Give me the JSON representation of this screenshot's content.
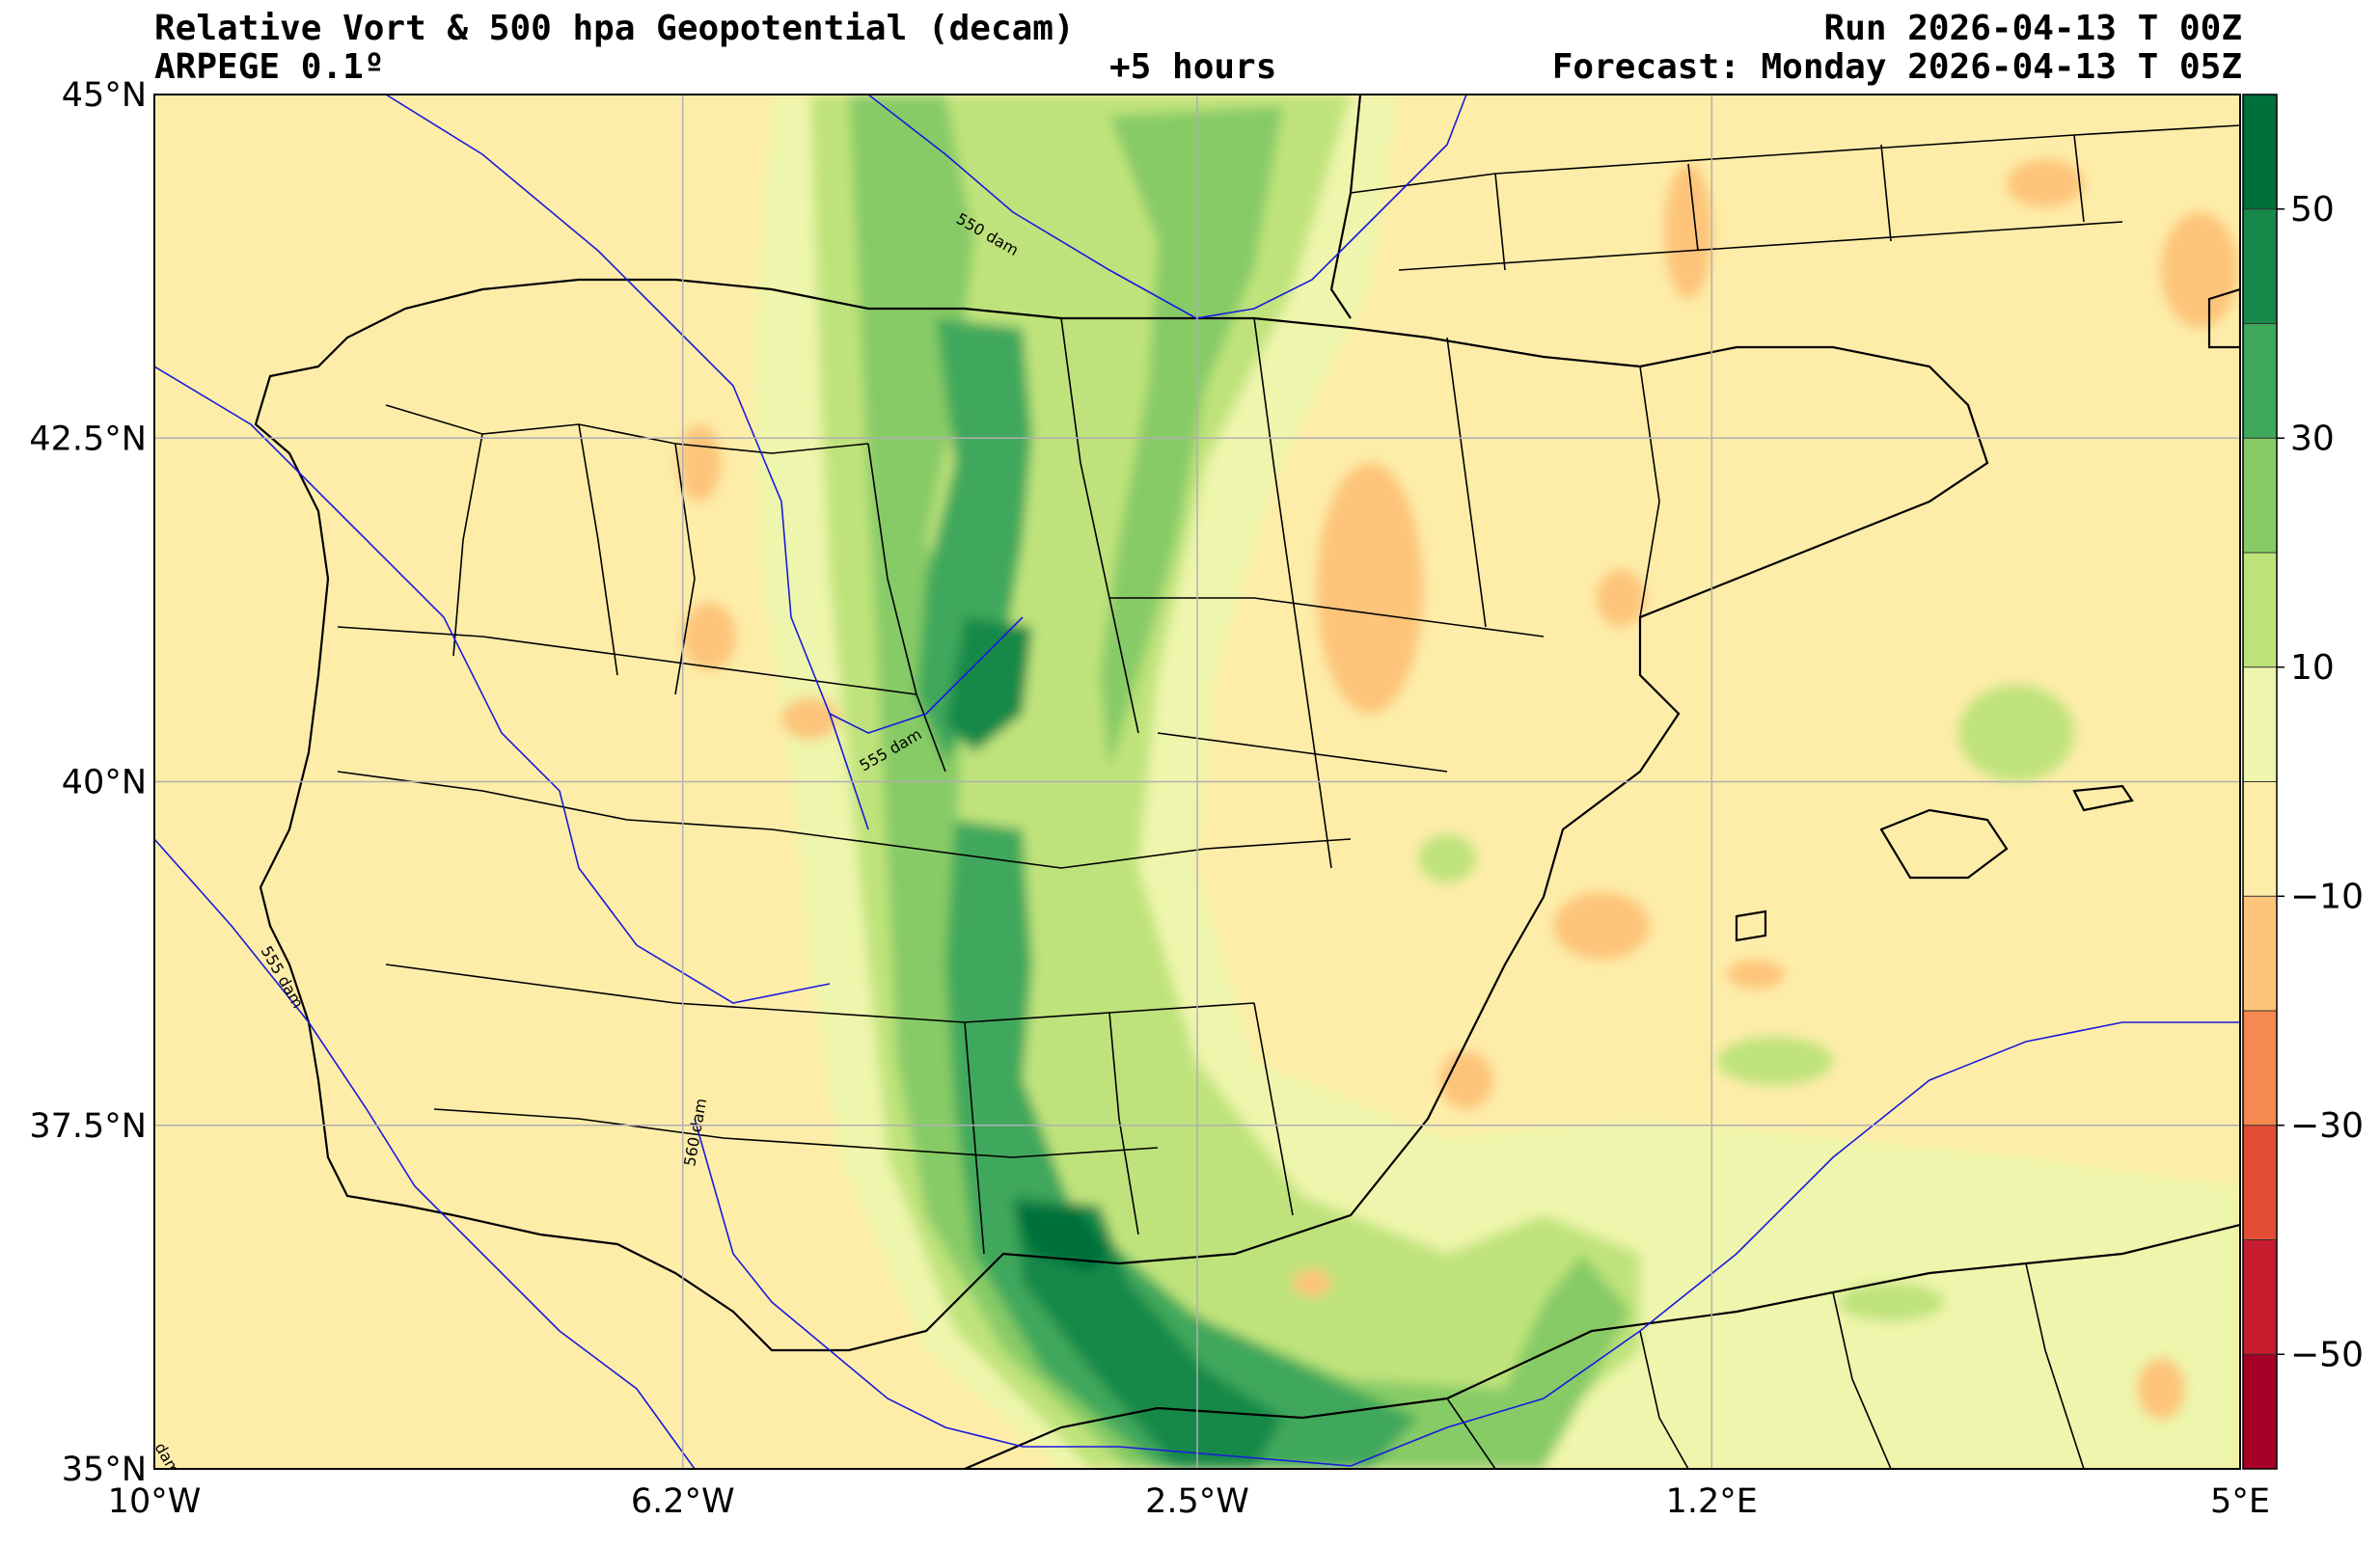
{
  "header": {
    "title": "Relative Vort & 500 hpa Geopotential (decam)",
    "model": "ARPEGE 0.1º",
    "lead_time": "+5 hours",
    "run": "Run 2026-04-13 T 00Z",
    "forecast": "Forecast: Monday 2026-04-13 T 05Z"
  },
  "map": {
    "lon_range": [
      -10,
      5
    ],
    "lat_range": [
      35,
      45
    ],
    "lon_ticks": [
      {
        "value": -10,
        "label": "10°W"
      },
      {
        "value": -6.2,
        "label": "6.2°W"
      },
      {
        "value": -2.5,
        "label": "2.5°W"
      },
      {
        "value": 1.2,
        "label": "1.2°E"
      },
      {
        "value": 5,
        "label": "5°E"
      }
    ],
    "lat_ticks": [
      {
        "value": 45,
        "label": "45°N"
      },
      {
        "value": 42.5,
        "label": "42.5°N"
      },
      {
        "value": 40,
        "label": "40°N"
      },
      {
        "value": 37.5,
        "label": "37.5°N"
      },
      {
        "value": 35,
        "label": "35°N"
      }
    ],
    "grid": true,
    "background_color": "#fdeda9",
    "geopotential_contours": [
      {
        "label": "550 dam",
        "color": "#1a1adc"
      },
      {
        "label": "555 dam",
        "color": "#1a1adc"
      },
      {
        "label": "555 dam",
        "color": "#1a1adc"
      },
      {
        "label": "560 dam",
        "color": "#1a1adc"
      },
      {
        "label": "dam",
        "color": "#1a1adc"
      }
    ]
  },
  "colorbar": {
    "ticks": [
      {
        "value": 50,
        "label": "50"
      },
      {
        "value": 30,
        "label": "30"
      },
      {
        "value": 10,
        "label": "10"
      },
      {
        "value": -10,
        "label": "−10"
      },
      {
        "value": -30,
        "label": "−30"
      },
      {
        "value": -50,
        "label": "−50"
      }
    ],
    "bands": [
      {
        "from": 50,
        "to": 60,
        "color": "#00703a"
      },
      {
        "from": 40,
        "to": 50,
        "color": "#17894a"
      },
      {
        "from": 30,
        "to": 40,
        "color": "#3fa85b"
      },
      {
        "from": 20,
        "to": 30,
        "color": "#87cb66"
      },
      {
        "from": 10,
        "to": 20,
        "color": "#bfe37b"
      },
      {
        "from": 0,
        "to": 10,
        "color": "#eef5ac"
      },
      {
        "from": -10,
        "to": 0,
        "color": "#fdeda9"
      },
      {
        "from": -20,
        "to": -10,
        "color": "#fdc47a"
      },
      {
        "from": -30,
        "to": -20,
        "color": "#f6894f"
      },
      {
        "from": -40,
        "to": -30,
        "color": "#e34d34"
      },
      {
        "from": -50,
        "to": -40,
        "color": "#c51d2e"
      },
      {
        "from": -60,
        "to": -50,
        "color": "#a50026"
      }
    ],
    "range": [
      -60,
      60
    ]
  }
}
